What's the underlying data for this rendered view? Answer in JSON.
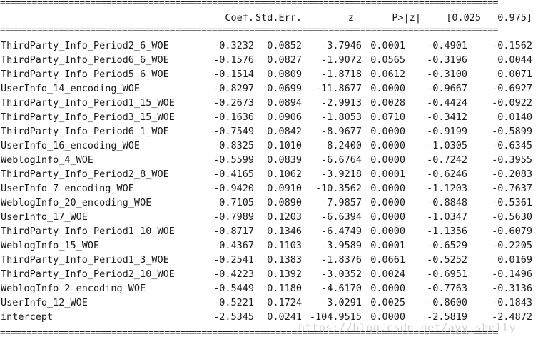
{
  "separator": "==============================================================================================",
  "header": {
    "coef": "Coef.",
    "std_err": "Std.Err.",
    "z": "z",
    "p": "P>|z|",
    "ci_low": "[0.025",
    "ci_high": "0.975]"
  },
  "rows": [
    {
      "name": "ThirdParty_Info_Period2_6_WOE",
      "coef": "-0.3232",
      "se": "0.0852",
      "z": "-3.7946",
      "p": "0.0001",
      "lo": "-0.4901",
      "hi": "-0.1562"
    },
    {
      "name": "ThirdParty_Info_Period6_6_WOE",
      "coef": "-0.1576",
      "se": "0.0827",
      "z": "-1.9072",
      "p": "0.0565",
      "lo": "-0.3196",
      "hi": "0.0044"
    },
    {
      "name": "ThirdParty_Info_Period5_6_WOE",
      "coef": "-0.1514",
      "se": "0.0809",
      "z": "-1.8718",
      "p": "0.0612",
      "lo": "-0.3100",
      "hi": "0.0071"
    },
    {
      "name": "UserInfo_14_encoding_WOE",
      "coef": "-0.8297",
      "se": "0.0699",
      "z": "-11.8677",
      "p": "0.0000",
      "lo": "-0.9667",
      "hi": "-0.6927"
    },
    {
      "name": "ThirdParty_Info_Period1_15_WOE",
      "coef": "-0.2673",
      "se": "0.0894",
      "z": "-2.9913",
      "p": "0.0028",
      "lo": "-0.4424",
      "hi": "-0.0922"
    },
    {
      "name": "ThirdParty_Info_Period3_15_WOE",
      "coef": "-0.1636",
      "se": "0.0906",
      "z": "-1.8053",
      "p": "0.0710",
      "lo": "-0.3412",
      "hi": "0.0140"
    },
    {
      "name": "ThirdParty_Info_Period6_1_WOE",
      "coef": "-0.7549",
      "se": "0.0842",
      "z": "-8.9677",
      "p": "0.0000",
      "lo": "-0.9199",
      "hi": "-0.5899"
    },
    {
      "name": "UserInfo_16_encoding_WOE",
      "coef": "-0.8325",
      "se": "0.1010",
      "z": "-8.2400",
      "p": "0.0000",
      "lo": "-1.0305",
      "hi": "-0.6345"
    },
    {
      "name": "WeblogInfo_4_WOE",
      "coef": "-0.5599",
      "se": "0.0839",
      "z": "-6.6764",
      "p": "0.0000",
      "lo": "-0.7242",
      "hi": "-0.3955"
    },
    {
      "name": "ThirdParty_Info_Period2_8_WOE",
      "coef": "-0.4165",
      "se": "0.1062",
      "z": "-3.9218",
      "p": "0.0001",
      "lo": "-0.6246",
      "hi": "-0.2083"
    },
    {
      "name": "UserInfo_7_encoding_WOE",
      "coef": "-0.9420",
      "se": "0.0910",
      "z": "-10.3562",
      "p": "0.0000",
      "lo": "-1.1203",
      "hi": "-0.7637"
    },
    {
      "name": "WeblogInfo_20_encoding_WOE",
      "coef": "-0.7105",
      "se": "0.0890",
      "z": "-7.9857",
      "p": "0.0000",
      "lo": "-0.8848",
      "hi": "-0.5361"
    },
    {
      "name": "UserInfo_17_WOE",
      "coef": "-0.7989",
      "se": "0.1203",
      "z": "-6.6394",
      "p": "0.0000",
      "lo": "-1.0347",
      "hi": "-0.5630"
    },
    {
      "name": "ThirdParty_Info_Period1_10_WOE",
      "coef": "-0.8717",
      "se": "0.1346",
      "z": "-6.4749",
      "p": "0.0000",
      "lo": "-1.1356",
      "hi": "-0.6079"
    },
    {
      "name": "WeblogInfo_15_WOE",
      "coef": "-0.4367",
      "se": "0.1103",
      "z": "-3.9589",
      "p": "0.0001",
      "lo": "-0.6529",
      "hi": "-0.2205"
    },
    {
      "name": "ThirdParty_Info_Period1_3_WOE",
      "coef": "-0.2541",
      "se": "0.1383",
      "z": "-1.8376",
      "p": "0.0661",
      "lo": "-0.5252",
      "hi": "0.0169"
    },
    {
      "name": "ThirdParty_Info_Period2_10_WOE",
      "coef": "-0.4223",
      "se": "0.1392",
      "z": "-3.0352",
      "p": "0.0024",
      "lo": "-0.6951",
      "hi": "-0.1496"
    },
    {
      "name": "WeblogInfo_2_encoding_WOE",
      "coef": "-0.5449",
      "se": "0.1180",
      "z": "-4.6170",
      "p": "0.0000",
      "lo": "-0.7763",
      "hi": "-0.3136"
    },
    {
      "name": "UserInfo_12_WOE",
      "coef": "-0.5221",
      "se": "0.1724",
      "z": "-3.0291",
      "p": "0.0025",
      "lo": "-0.8600",
      "hi": "-0.1843"
    },
    {
      "name": "intercept",
      "coef": "-2.5345",
      "se": "0.0241",
      "z": "-104.9515",
      "p": "0.0000",
      "lo": "-2.5819",
      "hi": "-2.4872"
    }
  ],
  "watermark": "https://blog.csdn.net/ayy_shelly"
}
